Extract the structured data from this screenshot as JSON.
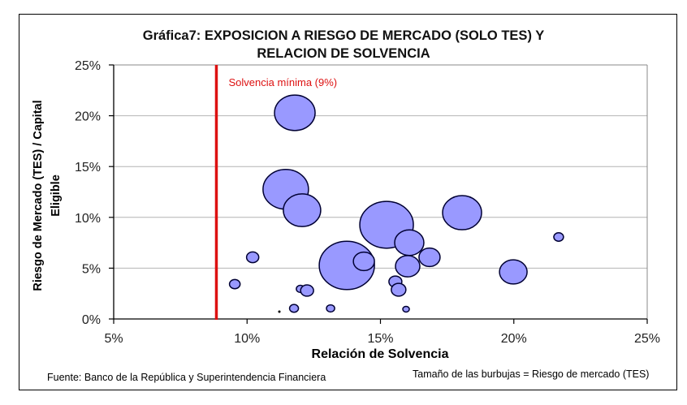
{
  "chart_data": {
    "type": "scatter",
    "subtype": "bubble",
    "title_lines": [
      "Gráfica7: EXPOSICION A RIESGO DE MERCADO (SOLO TES) Y",
      "RELACION DE SOLVENCIA"
    ],
    "xlabel": "Relación de Solvencia",
    "ylabel_lines": [
      "Riesgo de Mercado (TES) / Capital",
      "Eligible"
    ],
    "xlim": [
      5,
      25
    ],
    "ylim": [
      0,
      25
    ],
    "x_ticks": [
      5,
      10,
      15,
      20,
      25
    ],
    "y_ticks": [
      0,
      5,
      10,
      15,
      20,
      25
    ],
    "x_tick_labels": [
      "5%",
      "10%",
      "15%",
      "20%",
      "25%"
    ],
    "y_tick_labels": [
      "0%",
      "5%",
      "10%",
      "15%",
      "20%",
      "25%"
    ],
    "grid": "horizontal",
    "bubble_color": "#9999ff",
    "bubble_edge_color": "#000033",
    "size_note": "relative bubble area (largest = 100)",
    "points": [
      {
        "x": 11.79,
        "y": 20.29,
        "size": 54.1
      },
      {
        "x": 11.45,
        "y": 12.76,
        "size": 67.8
      },
      {
        "x": 12.06,
        "y": 10.7,
        "size": 45.8
      },
      {
        "x": 15.23,
        "y": 9.27,
        "size": 94.2
      },
      {
        "x": 13.74,
        "y": 5.27,
        "size": 100
      },
      {
        "x": 14.38,
        "y": 5.67,
        "size": 14.6
      },
      {
        "x": 16.08,
        "y": 7.51,
        "size": 28.0
      },
      {
        "x": 16.02,
        "y": 5.19,
        "size": 19.5
      },
      {
        "x": 16.84,
        "y": 6.07,
        "size": 14.6
      },
      {
        "x": 18.06,
        "y": 10.46,
        "size": 49.8
      },
      {
        "x": 19.98,
        "y": 4.63,
        "size": 25.0
      },
      {
        "x": 21.68,
        "y": 8.07,
        "size": 3.1
      },
      {
        "x": 15.56,
        "y": 3.67,
        "size": 5.5
      },
      {
        "x": 15.68,
        "y": 2.88,
        "size": 7.0
      },
      {
        "x": 15.96,
        "y": 0.96,
        "size": 1.4
      },
      {
        "x": 10.21,
        "y": 6.07,
        "size": 4.9
      },
      {
        "x": 9.54,
        "y": 3.43,
        "size": 3.7
      },
      {
        "x": 12.0,
        "y": 2.96,
        "size": 2.2
      },
      {
        "x": 12.25,
        "y": 2.8,
        "size": 5.5
      },
      {
        "x": 11.76,
        "y": 1.04,
        "size": 2.6
      },
      {
        "x": 13.13,
        "y": 1.04,
        "size": 2.2
      },
      {
        "x": 11.21,
        "y": 0.72,
        "size": 0.2
      }
    ],
    "threshold": {
      "x": 8.85,
      "label": "Solvencia mínima (9%)",
      "color": "#dd1111"
    },
    "footnotes": {
      "source": "Fuente: Banco de la República y Superintendencia Financiera",
      "size_legend": "Tamaño de las burbujas = Riesgo de mercado (TES)"
    }
  }
}
